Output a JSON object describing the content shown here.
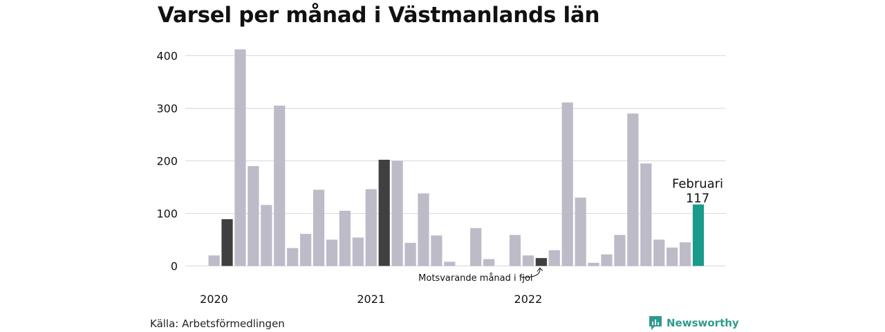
{
  "chart_data": {
    "type": "bar",
    "title": "Varsel per månad i Västmanlands län",
    "xlabel": "",
    "ylabel": "",
    "ylim": [
      0,
      400
    ],
    "yticks": [
      0,
      100,
      200,
      300,
      400
    ],
    "year_labels": [
      {
        "label": "2020",
        "index": 1
      },
      {
        "label": "2021",
        "index": 13
      },
      {
        "label": "2022",
        "index": 25
      }
    ],
    "values": [
      20,
      89,
      412,
      190,
      116,
      305,
      34,
      61,
      145,
      50,
      105,
      54,
      146,
      202,
      200,
      44,
      138,
      58,
      8,
      0,
      72,
      13,
      0,
      59,
      20,
      15,
      30,
      311,
      130,
      6,
      22,
      59,
      290,
      195,
      50,
      35,
      45,
      117
    ],
    "highlight_dark": [
      1,
      13,
      25
    ],
    "highlight_accent": 37,
    "annotations": {
      "last_label": "Februari",
      "last_value": "117",
      "previous_year_note": "Motsvarande månad i fjol"
    },
    "colors": {
      "base": "#bdbbc8",
      "dark": "#404040",
      "accent": "#1a9a8a",
      "grid": "#d9d9d9"
    },
    "grid": true
  },
  "footer": {
    "source": "Källa: Arbetsförmedlingen",
    "brand": "Newsworthy",
    "brand_icon": "newsworthy-logo-icon"
  }
}
